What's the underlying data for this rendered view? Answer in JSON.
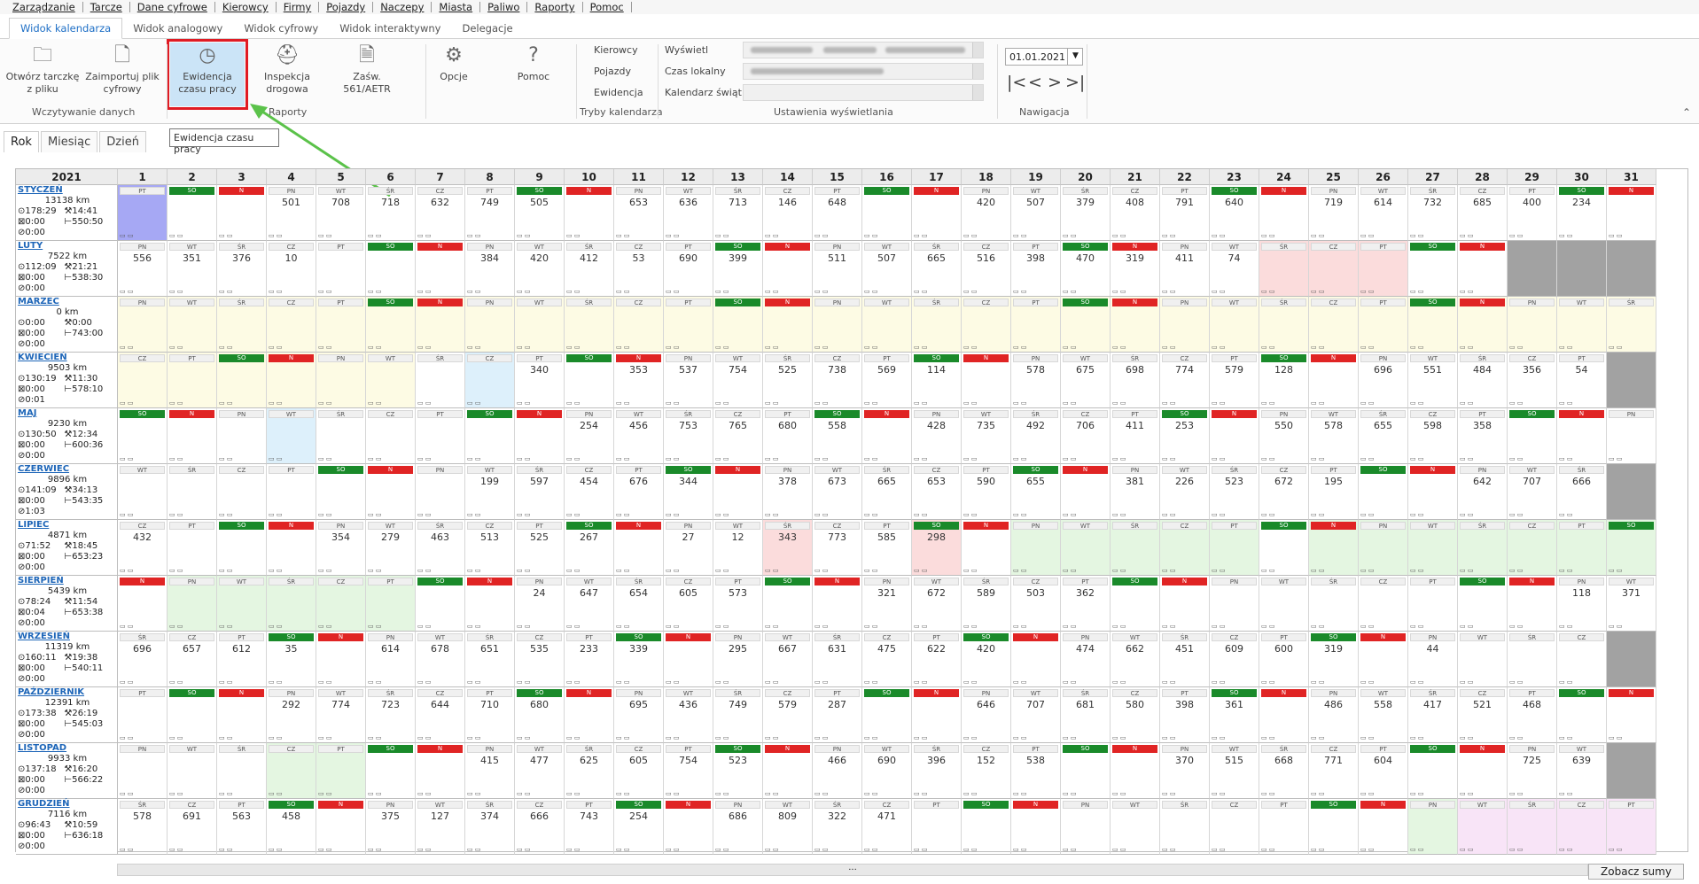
{
  "menu": [
    "Zarządzanie",
    "Tarcze",
    "Dane cyfrowe",
    "Kierowcy",
    "Firmy",
    "Pojazdy",
    "Naczepy",
    "Miasta",
    "Paliwo",
    "Raporty",
    "Pomoc"
  ],
  "tabs": [
    "Widok kalendarza",
    "Widok analogowy",
    "Widok cyfrowy",
    "Widok interaktywny",
    "Delegacje"
  ],
  "ribbon": {
    "buttons": [
      {
        "label": "Otwórz tarczkę z pliku",
        "icon": "folder-icon"
      },
      {
        "label": "Zaimportuj plik cyfrowy",
        "icon": "import-file-icon"
      },
      {
        "label": "Ewidencja czasu pracy",
        "icon": "clock-icon"
      },
      {
        "label": "Inspekcja drogowa",
        "icon": "police-icon"
      },
      {
        "label": "Zaśw. 561/AETR",
        "icon": "document-icon"
      },
      {
        "label": "Opcje",
        "icon": "gear-icon"
      },
      {
        "label": "Pomoc",
        "icon": "help-icon"
      }
    ],
    "groups": [
      "Wczytywanie danych",
      "Raporty",
      "Tryby kalendarza",
      "Ustawienia wyświetlania",
      "Nawigacja"
    ],
    "modes": [
      "Kierowcy",
      "Pojazdy",
      "Ewidencja"
    ],
    "display_labels": [
      "Wyświetl",
      "Czas lokalny",
      "Kalendarz świąt"
    ],
    "date": "01.01.2021",
    "nav_glyphs": [
      "|<",
      "<",
      ">",
      ">|"
    ]
  },
  "tooltip": "Ewidencja czasu pracy",
  "subtabs": [
    "Rok",
    "Miesiąc",
    "Dzień"
  ],
  "year": "2021",
  "days": [
    1,
    2,
    3,
    4,
    5,
    6,
    7,
    8,
    9,
    10,
    11,
    12,
    13,
    14,
    15,
    16,
    17,
    18,
    19,
    20,
    21,
    22,
    23,
    24,
    25,
    26,
    27,
    28,
    29,
    30,
    31
  ],
  "months": [
    {
      "name": "STYCZEŃ",
      "km": "13138 km",
      "t1": "178:29",
      "t2": "14:41",
      "t3": "0:00",
      "t4": "550:50",
      "t5": "0:00",
      "first": 4,
      "len": 31,
      "kms": [
        "",
        "",
        "",
        "501",
        "708",
        "718",
        "632",
        "749",
        "505",
        "",
        "653",
        "636",
        "713",
        "146",
        "648",
        "",
        "",
        "420",
        "507",
        "379",
        "408",
        "791",
        "640",
        "",
        "719",
        "614",
        "732",
        "685",
        "400",
        "234",
        ""
      ]
    },
    {
      "name": "LUTY",
      "km": "7522 km",
      "t1": "112:09",
      "t2": "21:21",
      "t3": "0:00",
      "t4": "538:30",
      "t5": "0:00",
      "first": 0,
      "len": 28,
      "kms": [
        "556",
        "351",
        "376",
        "10",
        "",
        "",
        "",
        "384",
        "420",
        "412",
        "53",
        "690",
        "399",
        "",
        "511",
        "507",
        "665",
        "516",
        "398",
        "470",
        "319",
        "411",
        "74",
        "",
        "",
        "",
        "",
        ""
      ]
    },
    {
      "name": "MARZEC",
      "km": "0 km",
      "t1": "0:00",
      "t2": "0:00",
      "t3": "0:00",
      "t4": "743:00",
      "t5": "0:00",
      "first": 0,
      "len": 31,
      "kms": [
        "",
        "",
        "",
        "",
        "",
        "",
        "",
        "",
        "",
        "",
        "",
        "",
        "",
        "",
        "",
        "",
        "",
        "",
        "",
        "",
        "",
        "",
        "",
        "",
        "",
        "",
        "",
        "",
        "",
        "",
        ""
      ]
    },
    {
      "name": "KWIECIEŃ",
      "km": "9503 km",
      "t1": "130:19",
      "t2": "11:30",
      "t3": "0:00",
      "t4": "578:10",
      "t5": "0:01",
      "first": 3,
      "len": 30,
      "kms": [
        "",
        "",
        "",
        "",
        "",
        "",
        "",
        "",
        "340",
        "",
        "353",
        "537",
        "754",
        "525",
        "738",
        "569",
        "114",
        "",
        "578",
        "675",
        "698",
        "774",
        "579",
        "128",
        "",
        "696",
        "551",
        "484",
        "356",
        "54"
      ]
    },
    {
      "name": "MAJ",
      "km": "9230 km",
      "t1": "130:50",
      "t2": "12:34",
      "t3": "0:00",
      "t4": "600:36",
      "t5": "0:00",
      "first": 5,
      "len": 31,
      "kms": [
        "",
        "",
        "",
        "",
        "",
        "",
        "",
        "",
        "",
        "254",
        "456",
        "753",
        "765",
        "680",
        "558",
        "",
        "428",
        "735",
        "492",
        "706",
        "411",
        "253",
        "",
        "550",
        "578",
        "655",
        "598",
        "358",
        "",
        "",
        ""
      ]
    },
    {
      "name": "CZERWIEC",
      "km": "9896 km",
      "t1": "141:09",
      "t2": "34:13",
      "t3": "0:00",
      "t4": "543:35",
      "t5": "1:03",
      "first": 1,
      "len": 30,
      "kms": [
        "",
        "",
        "",
        "",
        "",
        "",
        "",
        "199",
        "597",
        "454",
        "676",
        "344",
        "",
        "378",
        "673",
        "665",
        "653",
        "590",
        "655",
        "",
        "381",
        "226",
        "523",
        "672",
        "195",
        "",
        "",
        "642",
        "707",
        "666"
      ]
    },
    {
      "name": "LIPIEC",
      "km": "4871 km",
      "t1": "71:52",
      "t2": "18:45",
      "t3": "0:00",
      "t4": "653:23",
      "t5": "0:00",
      "first": 3,
      "len": 31,
      "kms": [
        "432",
        "",
        "",
        "",
        "354",
        "279",
        "463",
        "513",
        "525",
        "267",
        "",
        "27",
        "12",
        "343",
        "773",
        "585",
        "298",
        "",
        "",
        "",
        "",
        "",
        "",
        "",
        "",
        "",
        "",
        "",
        "",
        "",
        ""
      ]
    },
    {
      "name": "SIERPIEŃ",
      "km": "5439 km",
      "t1": "78:24",
      "t2": "11:54",
      "t3": "0:04",
      "t4": "653:38",
      "t5": "0:00",
      "first": 6,
      "len": 31,
      "kms": [
        "",
        "",
        "",
        "",
        "",
        "",
        "",
        "",
        "24",
        "647",
        "654",
        "605",
        "573",
        "",
        "",
        "321",
        "672",
        "589",
        "503",
        "362",
        "",
        "",
        "",
        "",
        "",
        "",
        "",
        "",
        "",
        "118",
        "371"
      ]
    },
    {
      "name": "WRZESIEŃ",
      "km": "11319 km",
      "t1": "160:11",
      "t2": "19:38",
      "t3": "0:00",
      "t4": "540:11",
      "t5": "0:00",
      "first": 2,
      "len": 30,
      "kms": [
        "696",
        "657",
        "612",
        "35",
        "",
        "614",
        "678",
        "651",
        "535",
        "233",
        "339",
        "",
        "295",
        "667",
        "631",
        "475",
        "622",
        "420",
        "",
        "474",
        "662",
        "451",
        "609",
        "600",
        "319",
        "",
        "44",
        "",
        "",
        ""
      ]
    },
    {
      "name": "PAŹDZIERNIK",
      "km": "12391 km",
      "t1": "173:38",
      "t3": "0:00",
      "t2": "26:19",
      "t4": "545:03",
      "t5": "0:00",
      "first": 4,
      "len": 31,
      "kms": [
        "",
        "",
        "",
        "292",
        "774",
        "723",
        "644",
        "710",
        "680",
        "",
        "695",
        "436",
        "749",
        "579",
        "287",
        "",
        "",
        "646",
        "707",
        "681",
        "580",
        "398",
        "361",
        "",
        "486",
        "558",
        "417",
        "521",
        "468",
        "",
        ""
      ]
    },
    {
      "name": "LISTOPAD",
      "km": "9933 km",
      "t1": "137:18",
      "t2": "16:20",
      "t3": "0:00",
      "t4": "566:22",
      "t5": "0:00",
      "first": 0,
      "len": 30,
      "kms": [
        "",
        "",
        "",
        "",
        "",
        "",
        "",
        "415",
        "477",
        "625",
        "605",
        "754",
        "523",
        "",
        "466",
        "690",
        "396",
        "152",
        "538",
        "",
        "",
        "370",
        "515",
        "668",
        "771",
        "604",
        "",
        "",
        "725",
        "639"
      ]
    },
    {
      "name": "GRUDZIEŃ",
      "km": "7116 km",
      "t1": "96:43",
      "t2": "10:59",
      "t3": "0:00",
      "t4": "636:18",
      "t5": "0:00",
      "first": 2,
      "len": 31,
      "kms": [
        "578",
        "691",
        "563",
        "458",
        "",
        "375",
        "127",
        "374",
        "666",
        "743",
        "254",
        "",
        "686",
        "809",
        "322",
        "471",
        "",
        "",
        "",
        "",
        "",
        "",
        "",
        "",
        "",
        "",
        "",
        "",
        "",
        "",
        ""
      ]
    }
  ],
  "weekdays": [
    "PN",
    "WT",
    "ŚR",
    "CZ",
    "PT",
    "SO",
    "N"
  ],
  "colors": {
    "sat": "#1a8a2a",
    "sun": "#e02424",
    "tint_yellow": "#fdfbe4",
    "tint_blue": "#ddf0fb",
    "tint_pink": "#fbdcdc",
    "tint_green": "#e4f6e1",
    "tint_violet": "#f8e4f7",
    "tint_sel": "#a6a8f4"
  },
  "tints": {
    "0": {
      "0": "sel"
    },
    "1": {
      "23": "pink",
      "24": "pink",
      "25": "pink"
    },
    "2": "yellow",
    "3": {
      "0": "yellow",
      "1": "yellow",
      "2": "yellow",
      "3": "yellow",
      "4": "yellow",
      "5": "yellow",
      "7": "blue"
    },
    "4": {
      "3": "blue"
    },
    "6": {
      "13": "pink",
      "16": "pink",
      "18": "green",
      "19": "green",
      "20": "green",
      "21": "green",
      "22": "green",
      "24": "green",
      "25": "green",
      "26": "green",
      "27": "green",
      "28": "green",
      "29": "green",
      "30": "green"
    },
    "7": {
      "1": "green",
      "2": "green",
      "3": "green",
      "4": "green",
      "5": "green"
    },
    "10": {
      "3": "green",
      "4": "green"
    },
    "11": {
      "26": "green",
      "27": "violet",
      "28": "violet",
      "29": "violet",
      "30": "violet"
    }
  },
  "scroll_label": "...",
  "sums_button": "Zobacz sumy"
}
